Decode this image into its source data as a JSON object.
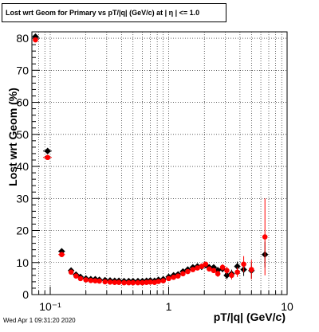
{
  "timestamp": "Wed Apr  1 09:31:20 2020",
  "chart_data": {
    "type": "scatter",
    "title": "Lost wrt Geom for Primary vs pT/|q| (GeV/c) at |  η | <= 1.0",
    "xlabel": "pT/|q| (GeV/c)",
    "ylabel": "Lost wrt Geom (%)",
    "xscale": "log",
    "xlim": [
      0.07,
      10
    ],
    "ylim": [
      0,
      82
    ],
    "grid": true,
    "x_tick_labels": [
      "10⁻¹",
      "1",
      "10"
    ],
    "y_tick_labels": [
      "0",
      "10",
      "20",
      "30",
      "40",
      "50",
      "60",
      "70",
      "80"
    ],
    "series": [
      {
        "color": "#000000",
        "marker": "diamond",
        "points": [
          {
            "x": 0.075,
            "y": 80.5,
            "ex": 0.003,
            "ey": 0
          },
          {
            "x": 0.095,
            "y": 44.8,
            "ex": 0.008,
            "ey": 0
          },
          {
            "x": 0.125,
            "y": 13.5,
            "ex": 0.008,
            "ey": 0
          },
          {
            "x": 0.15,
            "y": 7.5
          },
          {
            "x": 0.165,
            "y": 6.2
          },
          {
            "x": 0.18,
            "y": 5.5
          },
          {
            "x": 0.2,
            "y": 5.0
          },
          {
            "x": 0.22,
            "y": 4.8
          },
          {
            "x": 0.24,
            "y": 4.8
          },
          {
            "x": 0.26,
            "y": 4.6
          },
          {
            "x": 0.29,
            "y": 4.5
          },
          {
            "x": 0.32,
            "y": 4.4
          },
          {
            "x": 0.35,
            "y": 4.3
          },
          {
            "x": 0.38,
            "y": 4.3
          },
          {
            "x": 0.42,
            "y": 4.2
          },
          {
            "x": 0.46,
            "y": 4.2
          },
          {
            "x": 0.5,
            "y": 4.2
          },
          {
            "x": 0.55,
            "y": 4.2
          },
          {
            "x": 0.6,
            "y": 4.2
          },
          {
            "x": 0.65,
            "y": 4.3
          },
          {
            "x": 0.7,
            "y": 4.4
          },
          {
            "x": 0.76,
            "y": 4.3
          },
          {
            "x": 0.82,
            "y": 4.6
          },
          {
            "x": 0.9,
            "y": 4.8
          },
          {
            "x": 1.0,
            "y": 5.5
          },
          {
            "x": 1.1,
            "y": 6.0
          },
          {
            "x": 1.2,
            "y": 6.3
          },
          {
            "x": 1.32,
            "y": 7.2
          },
          {
            "x": 1.45,
            "y": 7.8
          },
          {
            "x": 1.6,
            "y": 8.5
          },
          {
            "x": 1.75,
            "y": 8.8
          },
          {
            "x": 1.9,
            "y": 8.7
          },
          {
            "x": 2.05,
            "y": 9.2
          },
          {
            "x": 2.2,
            "y": 8.5
          },
          {
            "x": 2.4,
            "y": 8.5
          },
          {
            "x": 2.6,
            "y": 7.6,
            "ey": 1.0
          },
          {
            "x": 2.85,
            "y": 8.0,
            "ey": 1.0
          },
          {
            "x": 3.1,
            "y": 6.0,
            "ey": 1.2
          },
          {
            "x": 3.4,
            "y": 6.5,
            "ey": 1.3
          },
          {
            "x": 3.8,
            "y": 8.8,
            "ey": 1.5
          },
          {
            "x": 4.3,
            "y": 7.8,
            "ey": 2.0
          },
          {
            "x": 5.0,
            "y": 7.5,
            "ey": 2.5
          },
          {
            "x": 6.5,
            "y": 12.5,
            "ey": 4.0
          }
        ]
      },
      {
        "color": "#ff0000",
        "marker": "circle",
        "points": [
          {
            "x": 0.075,
            "y": 79.5,
            "ex": 0.003,
            "ey": 0
          },
          {
            "x": 0.095,
            "y": 42.8,
            "ex": 0.008,
            "ey": 0
          },
          {
            "x": 0.125,
            "y": 12.5,
            "ex": 0.008,
            "ey": 0
          },
          {
            "x": 0.15,
            "y": 7.0
          },
          {
            "x": 0.165,
            "y": 5.8
          },
          {
            "x": 0.18,
            "y": 5.0
          },
          {
            "x": 0.2,
            "y": 4.6
          },
          {
            "x": 0.22,
            "y": 4.4
          },
          {
            "x": 0.24,
            "y": 4.3
          },
          {
            "x": 0.26,
            "y": 4.2
          },
          {
            "x": 0.29,
            "y": 4.0
          },
          {
            "x": 0.32,
            "y": 3.9
          },
          {
            "x": 0.35,
            "y": 3.8
          },
          {
            "x": 0.38,
            "y": 3.8
          },
          {
            "x": 0.42,
            "y": 3.7
          },
          {
            "x": 0.46,
            "y": 3.7
          },
          {
            "x": 0.5,
            "y": 3.7
          },
          {
            "x": 0.55,
            "y": 3.7
          },
          {
            "x": 0.6,
            "y": 3.7
          },
          {
            "x": 0.65,
            "y": 3.8
          },
          {
            "x": 0.7,
            "y": 3.9
          },
          {
            "x": 0.76,
            "y": 3.8
          },
          {
            "x": 0.82,
            "y": 4.1
          },
          {
            "x": 0.9,
            "y": 4.3
          },
          {
            "x": 1.0,
            "y": 5.0
          },
          {
            "x": 1.1,
            "y": 5.4
          },
          {
            "x": 1.2,
            "y": 5.8
          },
          {
            "x": 1.32,
            "y": 6.5
          },
          {
            "x": 1.45,
            "y": 7.2
          },
          {
            "x": 1.6,
            "y": 7.8
          },
          {
            "x": 1.75,
            "y": 8.3
          },
          {
            "x": 1.9,
            "y": 8.8
          },
          {
            "x": 2.05,
            "y": 9.5
          },
          {
            "x": 2.2,
            "y": 8.0
          },
          {
            "x": 2.4,
            "y": 7.5
          },
          {
            "x": 2.6,
            "y": 6.5,
            "ey": 1.0
          },
          {
            "x": 2.85,
            "y": 8.5,
            "ey": 1.0
          },
          {
            "x": 3.1,
            "y": 7.5,
            "ey": 1.2
          },
          {
            "x": 3.4,
            "y": 6.0,
            "ey": 1.3
          },
          {
            "x": 3.8,
            "y": 7.0,
            "ey": 1.5
          },
          {
            "x": 4.3,
            "y": 9.5,
            "ey": 2.5
          },
          {
            "x": 5.0,
            "y": 7.8,
            "ey": 3.0
          },
          {
            "x": 6.5,
            "y": 18.0,
            "ey": 12.0
          }
        ]
      }
    ]
  }
}
